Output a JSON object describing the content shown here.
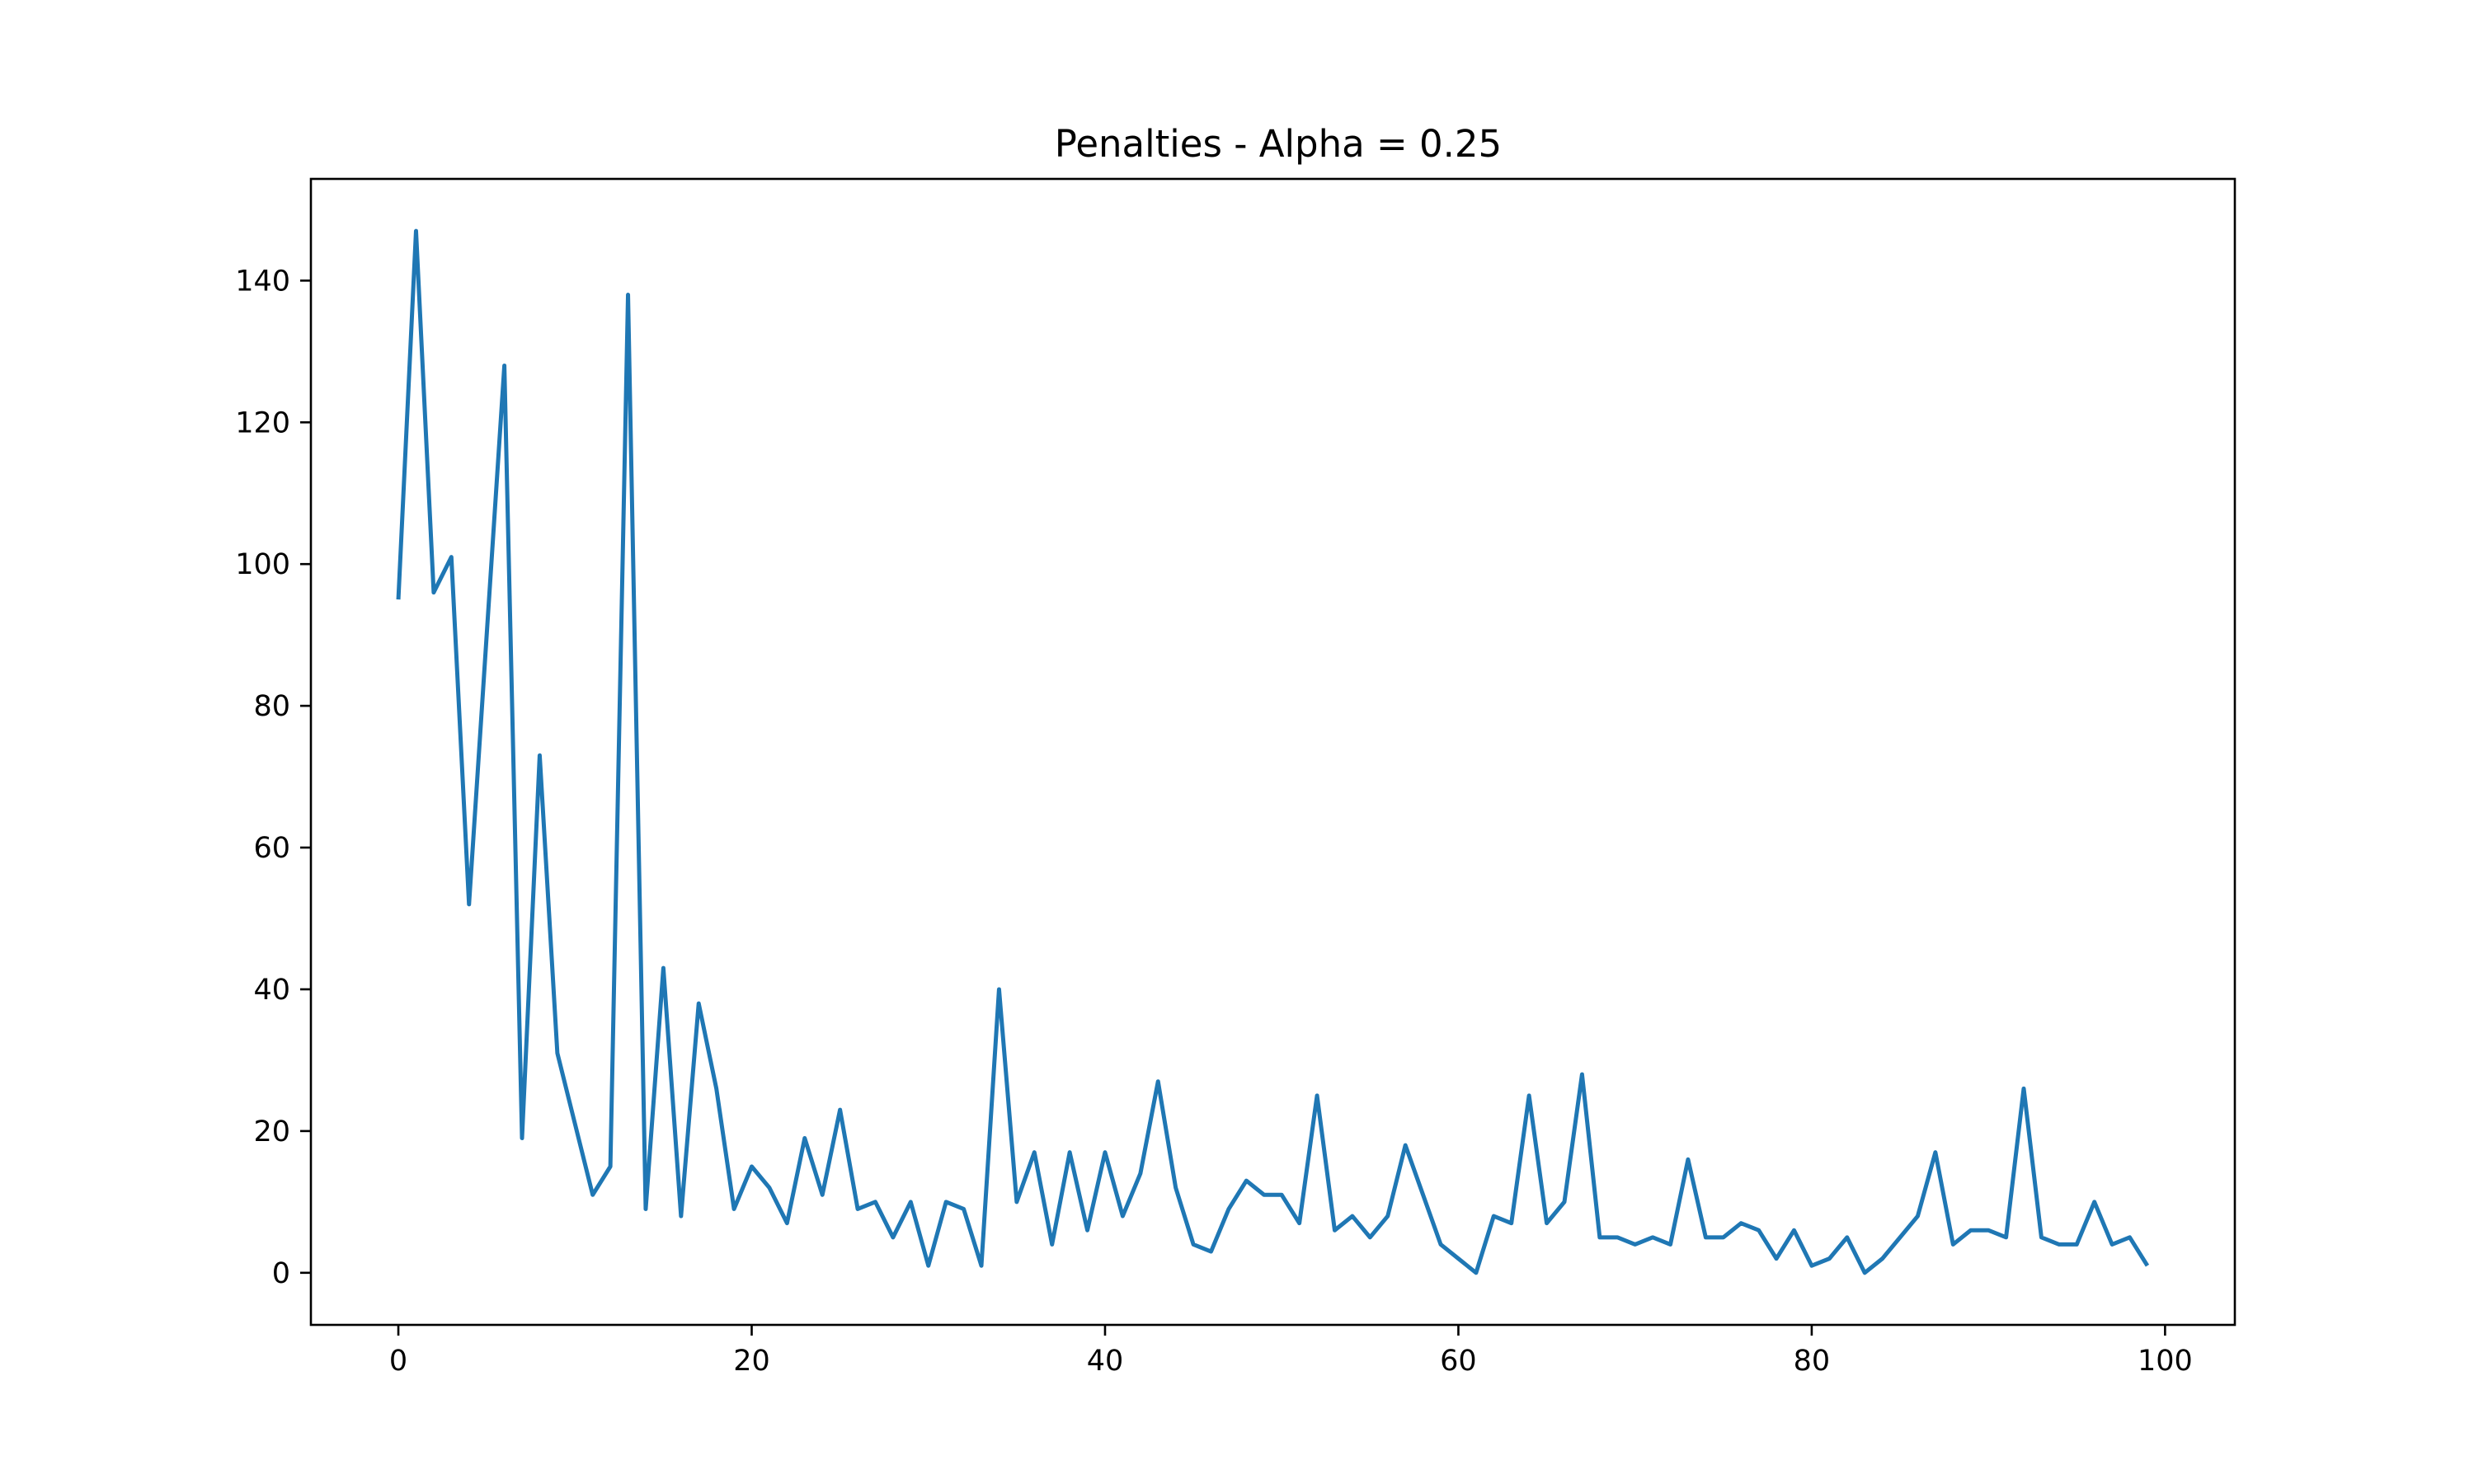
{
  "chart_data": {
    "type": "line",
    "title": "Penalties - Alpha = 0.25",
    "xlabel": "",
    "ylabel": "",
    "xlim": [
      -4.95,
      103.95
    ],
    "ylim": [
      -7.35,
      154.35
    ],
    "xticks": [
      0,
      20,
      40,
      60,
      80,
      100
    ],
    "yticks": [
      0,
      20,
      40,
      60,
      80,
      100,
      120,
      140
    ],
    "grid": false,
    "legend": "none",
    "line_color": "#1f77b4",
    "series": [
      {
        "x": [
          0,
          1,
          2,
          3,
          4,
          5,
          6,
          7,
          8,
          9,
          10,
          11,
          12,
          13,
          14,
          15,
          16,
          17,
          18,
          19,
          20,
          21,
          22,
          23,
          24,
          25,
          26,
          27,
          28,
          29,
          30,
          31,
          32,
          33,
          34,
          35,
          36,
          37,
          38,
          39,
          40,
          41,
          42,
          43,
          44,
          45,
          46,
          47,
          48,
          49,
          50,
          51,
          52,
          53,
          54,
          55,
          56,
          57,
          58,
          59,
          60,
          61,
          62,
          63,
          64,
          65,
          66,
          67,
          68,
          69,
          70,
          71,
          72,
          73,
          74,
          75,
          76,
          77,
          78,
          79,
          80,
          81,
          82,
          83,
          84,
          85,
          86,
          87,
          88,
          89,
          90,
          91,
          92,
          93,
          94,
          95,
          96,
          97,
          98,
          99
        ],
        "values": [
          95,
          147,
          96,
          101,
          52,
          90,
          128,
          19,
          73,
          31,
          21,
          11,
          15,
          138,
          9,
          43,
          8,
          38,
          26,
          9,
          15,
          12,
          7,
          19,
          11,
          23,
          9,
          10,
          5,
          10,
          1,
          10,
          9,
          1,
          40,
          10,
          17,
          4,
          17,
          6,
          17,
          8,
          14,
          27,
          12,
          4,
          3,
          9,
          13,
          11,
          11,
          7,
          25,
          6,
          8,
          5,
          8,
          18,
          11,
          4,
          2,
          0,
          8,
          7,
          25,
          7,
          10,
          28,
          5,
          5,
          4,
          5,
          4,
          16,
          5,
          5,
          7,
          6,
          2,
          6,
          1,
          2,
          5,
          0,
          2,
          5,
          8,
          17,
          4,
          6,
          6,
          5,
          26,
          5,
          4,
          4,
          10,
          4,
          5,
          1
        ]
      }
    ]
  }
}
